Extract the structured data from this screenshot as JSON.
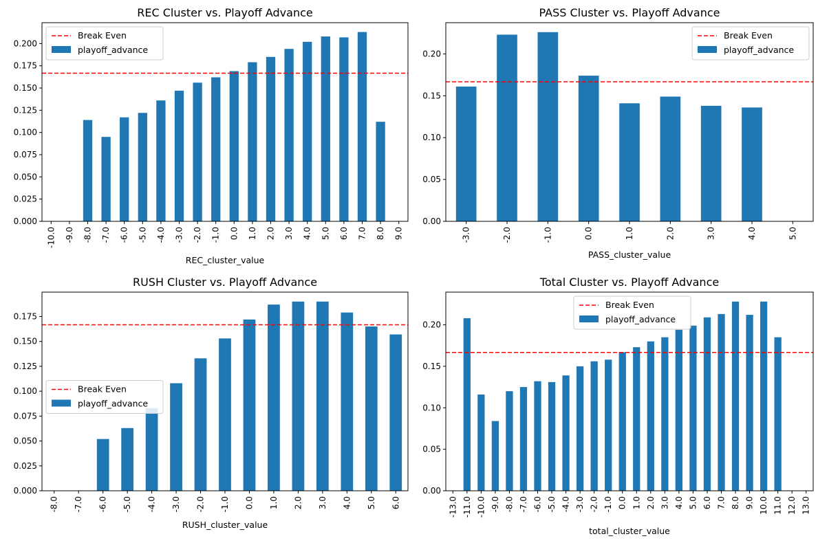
{
  "chart_data": [
    {
      "type": "bar",
      "title": "REC Cluster vs. Playoff Advance",
      "xlabel": "REC_cluster_value",
      "ylabel": "",
      "categories": [
        "-10.0",
        "-9.0",
        "-8.0",
        "-7.0",
        "-6.0",
        "-5.0",
        "-4.0",
        "-3.0",
        "-2.0",
        "-1.0",
        "0.0",
        "1.0",
        "2.0",
        "3.0",
        "4.0",
        "5.0",
        "6.0",
        "7.0",
        "8.0",
        "9.0"
      ],
      "series": [
        {
          "name": "playoff_advance",
          "values": [
            0,
            0,
            0.114,
            0.095,
            0.117,
            0.122,
            0.136,
            0.147,
            0.156,
            0.162,
            0.169,
            0.179,
            0.185,
            0.194,
            0.202,
            0.208,
            0.207,
            0.213,
            0.112,
            0
          ]
        }
      ],
      "reference_line": {
        "name": "Break Even",
        "value": 0.1667
      },
      "yticks": [
        "0.000",
        "0.025",
        "0.050",
        "0.075",
        "0.100",
        "0.125",
        "0.150",
        "0.175",
        "0.200"
      ],
      "ylim": [
        0,
        0.2235
      ],
      "legend": "top-left",
      "grid": false,
      "bar_color": "#1f77b4",
      "line_color": "#ff0000"
    },
    {
      "type": "bar",
      "title": "PASS Cluster vs. Playoff Advance",
      "xlabel": "PASS_cluster_value",
      "ylabel": "",
      "categories": [
        "-3.0",
        "-2.0",
        "-1.0",
        "0.0",
        "1.0",
        "2.0",
        "3.0",
        "4.0",
        "5.0"
      ],
      "series": [
        {
          "name": "playoff_advance",
          "values": [
            0.161,
            0.223,
            0.226,
            0.174,
            0.141,
            0.149,
            0.138,
            0.136,
            0
          ]
        }
      ],
      "reference_line": {
        "name": "Break Even",
        "value": 0.1667
      },
      "yticks": [
        "0.00",
        "0.05",
        "0.10",
        "0.15",
        "0.20"
      ],
      "ylim": [
        0,
        0.2373
      ],
      "legend": "top-right",
      "grid": false,
      "bar_color": "#1f77b4",
      "line_color": "#ff0000"
    },
    {
      "type": "bar",
      "title": "RUSH Cluster vs. Playoff Advance",
      "xlabel": "RUSH_cluster_value",
      "ylabel": "",
      "categories": [
        "-8.0",
        "-7.0",
        "-6.0",
        "-5.0",
        "-4.0",
        "-3.0",
        "-2.0",
        "-1.0",
        "0.0",
        "1.0",
        "2.0",
        "3.0",
        "4.0",
        "5.0",
        "6.0"
      ],
      "series": [
        {
          "name": "playoff_advance",
          "values": [
            0,
            0,
            0.052,
            0.063,
            0.083,
            0.108,
            0.133,
            0.153,
            0.172,
            0.187,
            0.19,
            0.19,
            0.179,
            0.165,
            0.157
          ]
        }
      ],
      "reference_line": {
        "name": "Break Even",
        "value": 0.1667
      },
      "yticks": [
        "0.000",
        "0.025",
        "0.050",
        "0.075",
        "0.100",
        "0.125",
        "0.150",
        "0.175"
      ],
      "ylim": [
        0,
        0.1995
      ],
      "legend": "center-left",
      "grid": false,
      "bar_color": "#1f77b4",
      "line_color": "#ff0000"
    },
    {
      "type": "bar",
      "title": "Total Cluster vs. Playoff Advance",
      "xlabel": "total_cluster_value",
      "ylabel": "",
      "categories": [
        "-13.0",
        "-11.0",
        "-10.0",
        "-9.0",
        "-8.0",
        "-7.0",
        "-6.0",
        "-5.0",
        "-4.0",
        "-3.0",
        "-2.0",
        "-1.0",
        "0.0",
        "1.0",
        "2.0",
        "3.0",
        "4.0",
        "5.0",
        "6.0",
        "7.0",
        "8.0",
        "9.0",
        "10.0",
        "11.0",
        "12.0",
        "13.0"
      ],
      "series": [
        {
          "name": "playoff_advance",
          "values": [
            0,
            0.208,
            0.116,
            0.084,
            0.12,
            0.125,
            0.132,
            0.131,
            0.139,
            0.15,
            0.156,
            0.158,
            0.167,
            0.173,
            0.18,
            0.185,
            0.194,
            0.199,
            0.209,
            0.213,
            0.228,
            0.212,
            0.228,
            0.185,
            0,
            0
          ]
        }
      ],
      "reference_line": {
        "name": "Break Even",
        "value": 0.1667
      },
      "yticks": [
        "0.00",
        "0.05",
        "0.10",
        "0.15",
        "0.20"
      ],
      "ylim": [
        0,
        0.2394
      ],
      "legend": "top-center",
      "grid": false,
      "bar_color": "#1f77b4",
      "line_color": "#ff0000"
    }
  ]
}
